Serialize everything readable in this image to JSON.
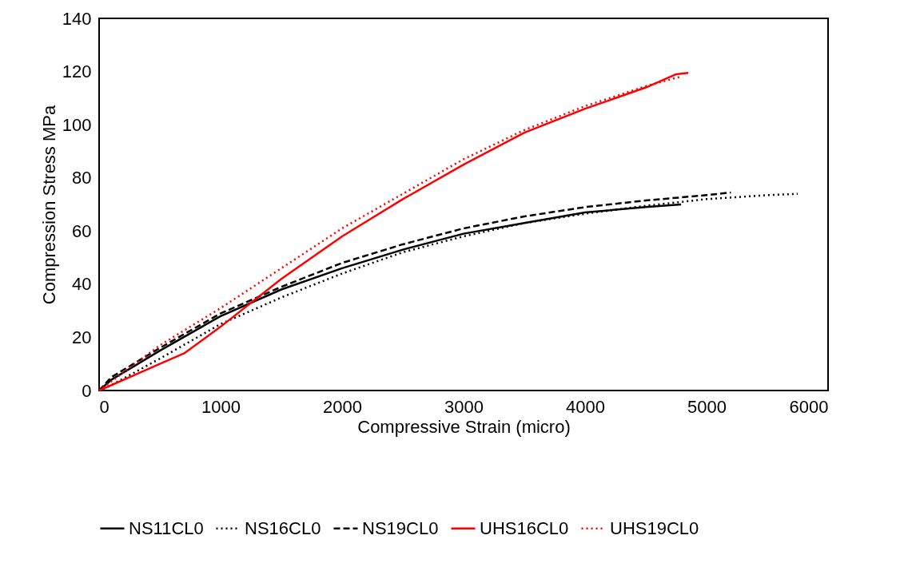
{
  "chart_data": {
    "type": "line",
    "xlabel": "Compressive Strain (micro)",
    "ylabel": "Compression Stress MPa",
    "xlim": [
      0,
      6000
    ],
    "xticks": [
      0,
      1000,
      2000,
      3000,
      4000,
      5000,
      6000
    ],
    "ylim": [
      0,
      140
    ],
    "yticks": [
      0,
      20,
      40,
      60,
      80,
      100,
      120,
      140
    ],
    "grid": false,
    "legend": "bottom",
    "marker": "none",
    "series": [
      {
        "name": "NS11CL0",
        "color": "#000000",
        "line_style": "solid",
        "x": [
          0,
          100,
          500,
          1000,
          1500,
          2000,
          2500,
          3000,
          3500,
          4000,
          4500,
          4790
        ],
        "values": [
          0,
          4,
          15,
          28,
          38,
          46,
          53,
          59,
          63,
          67,
          69,
          70
        ]
      },
      {
        "name": "NS16CL0",
        "color": "#000000",
        "line_style": "dotted",
        "x": [
          0,
          100,
          500,
          1000,
          1500,
          2000,
          2500,
          3000,
          3500,
          4000,
          4500,
          5000,
          5500,
          5750
        ],
        "values": [
          0,
          2,
          12,
          25,
          35,
          44,
          52,
          58,
          63,
          66.5,
          69.5,
          72,
          73.5,
          74
        ]
      },
      {
        "name": "NS19CL0",
        "color": "#000000",
        "line_style": "dashed",
        "x": [
          0,
          100,
          500,
          1000,
          1500,
          2000,
          2500,
          3000,
          3500,
          4000,
          4500,
          5000,
          5200
        ],
        "values": [
          0,
          5,
          16,
          29,
          39,
          48,
          55,
          61,
          65.5,
          69,
          71.5,
          73.5,
          74.5
        ]
      },
      {
        "name": "UHS16CL0",
        "color": "#ff0000",
        "line_style": "solid",
        "x": [
          0,
          250,
          500,
          700,
          1000,
          1500,
          2000,
          2500,
          3000,
          3500,
          4000,
          4500,
          4750,
          4850
        ],
        "values": [
          0,
          5,
          10,
          14,
          24,
          42,
          58,
          72,
          85,
          97,
          106,
          114,
          119,
          119.5
        ]
      },
      {
        "name": "UHS19CL0",
        "color": "#ff0000",
        "line_style": "dotted",
        "x": [
          0,
          500,
          1000,
          1500,
          2000,
          2500,
          3000,
          3500,
          4000,
          4500,
          4780
        ],
        "values": [
          0,
          17,
          31,
          46,
          61,
          74,
          87,
          98,
          107,
          114.5,
          118
        ]
      }
    ]
  }
}
